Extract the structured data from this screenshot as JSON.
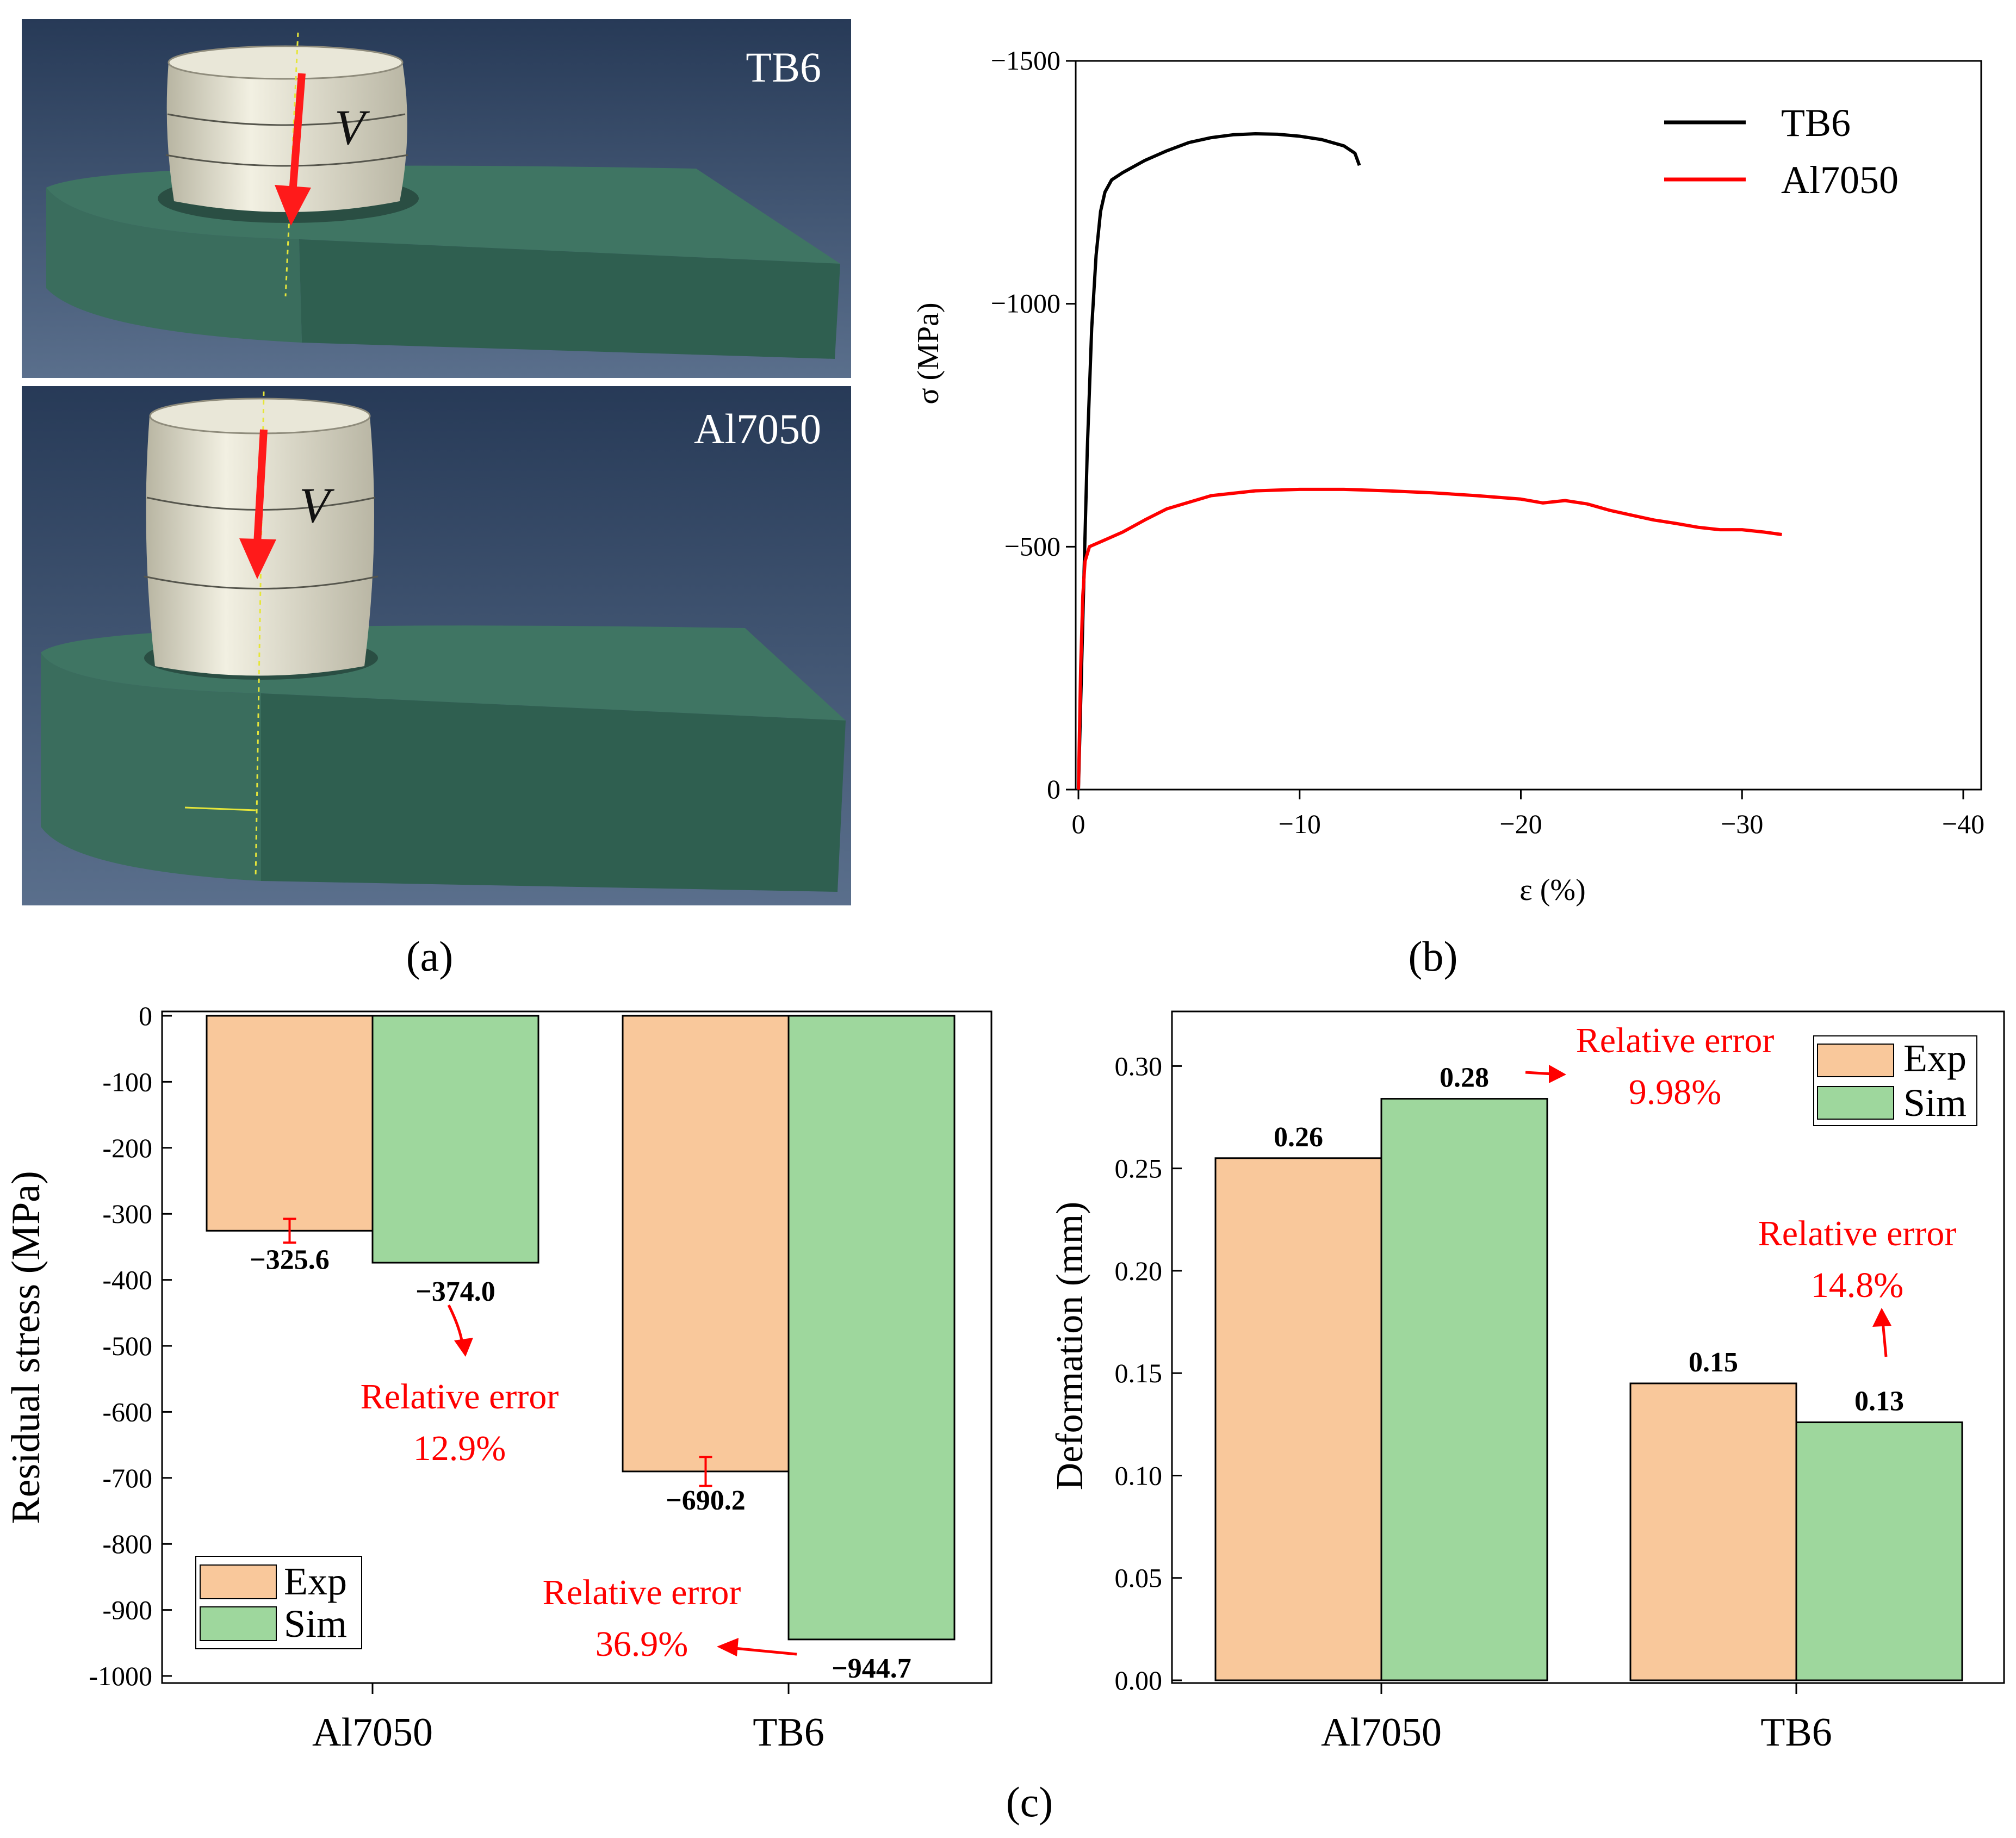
{
  "panel_labels": {
    "a": "(a)",
    "b": "(b)",
    "c": "(c)"
  },
  "simulation": {
    "top": {
      "title": "TB6",
      "velocity": "V"
    },
    "bottom": {
      "title": "Al7050",
      "velocity": "V"
    },
    "colors": {
      "background": "#2c3f5c",
      "workpiece": "#36695a",
      "tool": "#dcd9c6",
      "arrow": "#ff1a1a",
      "axis": "#e6e63a"
    }
  },
  "chart_data": [
    {
      "type": "line",
      "title": "",
      "xlabel": "ε (%)",
      "ylabel": "σ (MPa)",
      "xlim": [
        0,
        -40
      ],
      "ylim": [
        0,
        -1500
      ],
      "xticks": [
        0,
        -10,
        -20,
        -30,
        -40
      ],
      "yticks": [
        0,
        -500,
        -1000,
        -1500
      ],
      "xtick_labels": [
        "0",
        "−10",
        "−20",
        "−30",
        "−40"
      ],
      "ytick_labels": [
        "0",
        "−500",
        "−1000",
        "−1500"
      ],
      "legend_position": "top-right",
      "series": [
        {
          "name": "TB6",
          "color": "#000000",
          "x": [
            0,
            -0.2,
            -0.4,
            -0.6,
            -0.8,
            -1.0,
            -1.2,
            -1.5,
            -2,
            -3,
            -4,
            -5,
            -6,
            -7,
            -8,
            -9,
            -10,
            -11,
            -12,
            -12.5,
            -12.7
          ],
          "y": [
            0,
            -350,
            -700,
            -950,
            -1100,
            -1190,
            -1230,
            -1255,
            -1270,
            -1295,
            -1315,
            -1332,
            -1342,
            -1348,
            -1350,
            -1349,
            -1345,
            -1338,
            -1325,
            -1310,
            -1285
          ]
        },
        {
          "name": "Al7050",
          "color": "#ff0000",
          "x": [
            0,
            -0.1,
            -0.2,
            -0.3,
            -0.5,
            -1,
            -2,
            -3,
            -4,
            -6,
            -8,
            -10,
            -12,
            -14,
            -16,
            -18,
            -20,
            -21,
            -22,
            -23,
            -24,
            -25,
            -26,
            -27,
            -28,
            -29,
            -30,
            -31,
            -31.8
          ],
          "y": [
            0,
            -250,
            -400,
            -470,
            -500,
            -510,
            -530,
            -555,
            -578,
            -605,
            -615,
            -618,
            -618,
            -615,
            -611,
            -605,
            -598,
            -590,
            -595,
            -588,
            -575,
            -565,
            -555,
            -548,
            -540,
            -535,
            -535,
            -530,
            -525
          ]
        }
      ]
    },
    {
      "type": "bar",
      "title": "",
      "xlabel": "",
      "ylabel": "Residual stress (MPa)",
      "ylim": [
        0,
        -1000
      ],
      "yticks": [
        0,
        -100,
        -200,
        -300,
        -400,
        -500,
        -600,
        -700,
        -800,
        -900,
        -1000
      ],
      "ytick_labels": [
        "0",
        "-100",
        "-200",
        "-300",
        "-400",
        "-500",
        "-600",
        "-700",
        "-800",
        "-900",
        "-1000"
      ],
      "categories": [
        "Al7050",
        "TB6"
      ],
      "series": [
        {
          "name": "Exp",
          "color": "#f9c89b",
          "values": [
            -325.6,
            -690.2
          ],
          "error": [
            18,
            22
          ],
          "labels": [
            "−325.6",
            "−690.2"
          ]
        },
        {
          "name": "Sim",
          "color": "#9ed79d",
          "values": [
            -374.0,
            -944.7
          ],
          "labels": [
            "−374.0",
            "−944.7"
          ]
        }
      ],
      "annotations": [
        {
          "line1": "Relative error",
          "line2": "12.9%"
        },
        {
          "line1": "Relative error",
          "line2": "36.9%"
        }
      ],
      "legend_position": "bottom-left"
    },
    {
      "type": "bar",
      "title": "",
      "xlabel": "",
      "ylabel": "Deformation (mm)",
      "ylim": [
        0,
        0.32
      ],
      "yticks": [
        0,
        0.05,
        0.1,
        0.15,
        0.2,
        0.25,
        0.3
      ],
      "ytick_labels": [
        "0.00",
        "0.05",
        "0.10",
        "0.15",
        "0.20",
        "0.25",
        "0.30"
      ],
      "categories": [
        "Al7050",
        "TB6"
      ],
      "series": [
        {
          "name": "Exp",
          "color": "#f9c89b",
          "values": [
            0.255,
            0.145
          ],
          "labels": [
            "0.26",
            "0.15"
          ]
        },
        {
          "name": "Sim",
          "color": "#9ed79d",
          "values": [
            0.284,
            0.126
          ],
          "labels": [
            "0.28",
            "0.13"
          ]
        }
      ],
      "annotations": [
        {
          "line1": "Relative error",
          "line2": "9.98%"
        },
        {
          "line1": "Relative error",
          "line2": "14.8%"
        }
      ],
      "legend_position": "top-right"
    }
  ]
}
